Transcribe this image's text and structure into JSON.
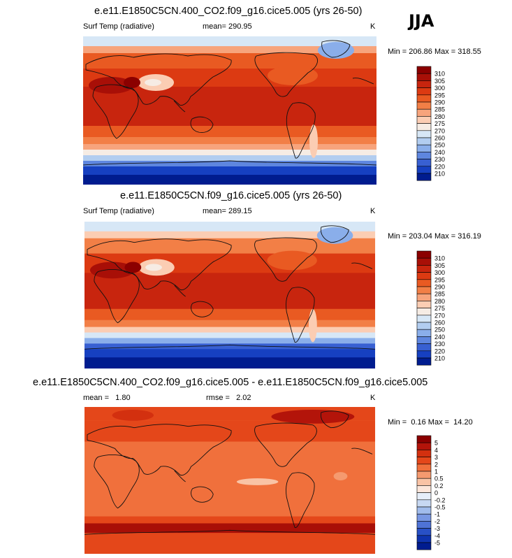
{
  "season": "JJA",
  "chart_data": [
    {
      "type": "heatmap",
      "title": "e.e11.E1850C5CN.400_CO2.f09_g16.cice5.005 (yrs 26-50)",
      "left_label": "Surf Temp (radiative)",
      "center_label": "mean= 290.95",
      "units": "K",
      "stats": "Min = 206.86 Max = 318.55",
      "colorbar": {
        "levels": [
          "310",
          "305",
          "300",
          "295",
          "290",
          "285",
          "280",
          "275",
          "270",
          "260",
          "250",
          "240",
          "230",
          "220",
          "210"
        ],
        "colors": [
          "#8b0000",
          "#a80f07",
          "#c8250e",
          "#dc3a12",
          "#e95a22",
          "#f27f46",
          "#f7a47c",
          "#fbcdb3",
          "#f6ece4",
          "#d7e7f6",
          "#b2cdf0",
          "#8aaeea",
          "#5e86df",
          "#3860d2",
          "#1640c1",
          "#001c8f"
        ]
      }
    },
    {
      "type": "heatmap",
      "title": "e.e11.E1850C5CN.f09_g16.cice5.005 (yrs 26-50)",
      "left_label": "Surf Temp (radiative)",
      "center_label": "mean= 289.15",
      "units": "K",
      "stats": "Min = 203.04 Max = 316.19",
      "colorbar": {
        "levels": [
          "310",
          "305",
          "300",
          "295",
          "290",
          "285",
          "280",
          "275",
          "270",
          "260",
          "250",
          "240",
          "230",
          "220",
          "210"
        ],
        "colors": [
          "#8b0000",
          "#a80f07",
          "#c8250e",
          "#dc3a12",
          "#e95a22",
          "#f27f46",
          "#f7a47c",
          "#fbcdb3",
          "#f6ece4",
          "#d7e7f6",
          "#b2cdf0",
          "#8aaeea",
          "#5e86df",
          "#3860d2",
          "#1640c1",
          "#001c8f"
        ]
      }
    },
    {
      "type": "heatmap",
      "title": "e.e11.E1850C5CN.400_CO2.f09_g16.cice5.005 - e.e11.E1850C5CN.f09_g16.cice5.005",
      "left_label": "mean =   1.80",
      "center_label": "rmse =   2.02",
      "units": "K",
      "stats": "Min =  0.16 Max =  14.20",
      "colorbar": {
        "levels": [
          "5",
          "4",
          "3",
          "2",
          "1",
          "0.5",
          "0.2",
          "0",
          "-0.2",
          "-0.5",
          "-1",
          "-2",
          "-3",
          "-4",
          "-5"
        ],
        "colors": [
          "#8b0000",
          "#b3140a",
          "#d3300f",
          "#e4471a",
          "#f0703c",
          "#f59a6f",
          "#f9c3a5",
          "#fce6da",
          "#e6eef9",
          "#c7d8f2",
          "#a1bcec",
          "#7897e3",
          "#4f73d6",
          "#2850c6",
          "#0e33ae",
          "#001c8f"
        ]
      }
    }
  ]
}
